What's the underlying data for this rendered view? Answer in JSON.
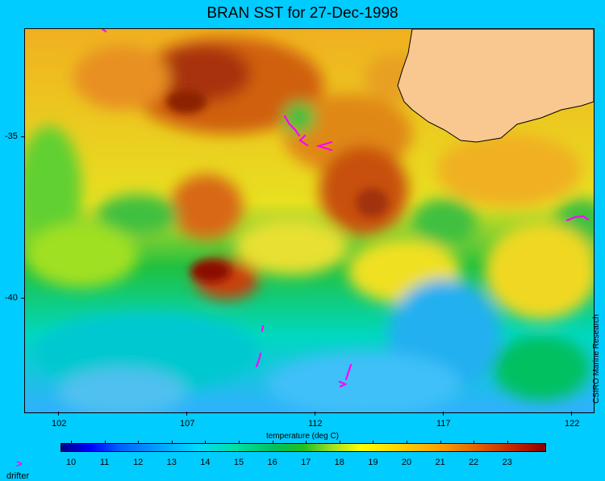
{
  "title": "BRAN SST for 27-Dec-1998",
  "map": {
    "variable": "SST",
    "x_axis": {
      "ticks": [
        "102",
        "107",
        "112",
        "117",
        "122"
      ]
    },
    "y_axis": {
      "ticks": [
        "-35",
        "-40"
      ]
    },
    "land_color": "#f8c890",
    "drifter_color": "#ff00ff"
  },
  "colorbar": {
    "label": "temperature (deg C)",
    "ticks": [
      "10",
      "11",
      "12",
      "13",
      "14",
      "15",
      "16",
      "17",
      "18",
      "19",
      "20",
      "21",
      "22",
      "23"
    ],
    "colors": [
      "#00008b",
      "#0000ff",
      "#00a0ff",
      "#00d8ff",
      "#00c060",
      "#ffff00",
      "#ffa000",
      "#c02000",
      "#8b0000"
    ]
  },
  "legend": {
    "symbol": ">",
    "label": "drifter"
  },
  "credit": "CSIRO Marine Research"
}
